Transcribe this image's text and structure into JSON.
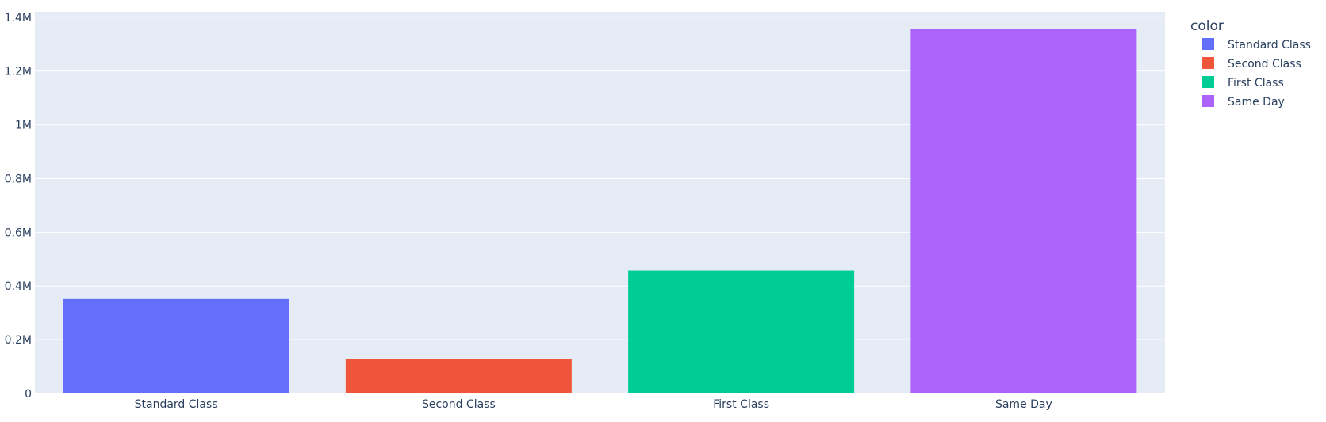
{
  "chart_data": {
    "type": "bar",
    "title": "",
    "xlabel": "",
    "ylabel": "",
    "categories": [
      "Standard Class",
      "Second Class",
      "First Class",
      "Same Day"
    ],
    "values": [
      351000,
      128000,
      458000,
      1357000
    ],
    "colors": [
      "#636efa",
      "#ef553b",
      "#00cc96",
      "#ab63fa"
    ],
    "ylim": [
      0,
      1420000
    ],
    "yticks": [
      0,
      200000,
      400000,
      600000,
      800000,
      1000000,
      1200000,
      1400000
    ],
    "ytick_labels": [
      "0",
      "0.2M",
      "0.4M",
      "0.6M",
      "0.8M",
      "1M",
      "1.2M",
      "1.4M"
    ],
    "grid": true,
    "legend": {
      "title": "color",
      "placement": "top-right",
      "entries": [
        "Standard Class",
        "Second Class",
        "First Class",
        "Same Day"
      ]
    },
    "plot_bg_color": "#e5ecf6",
    "grid_color": "#ffffff",
    "text_color": "#2a3f5f"
  }
}
